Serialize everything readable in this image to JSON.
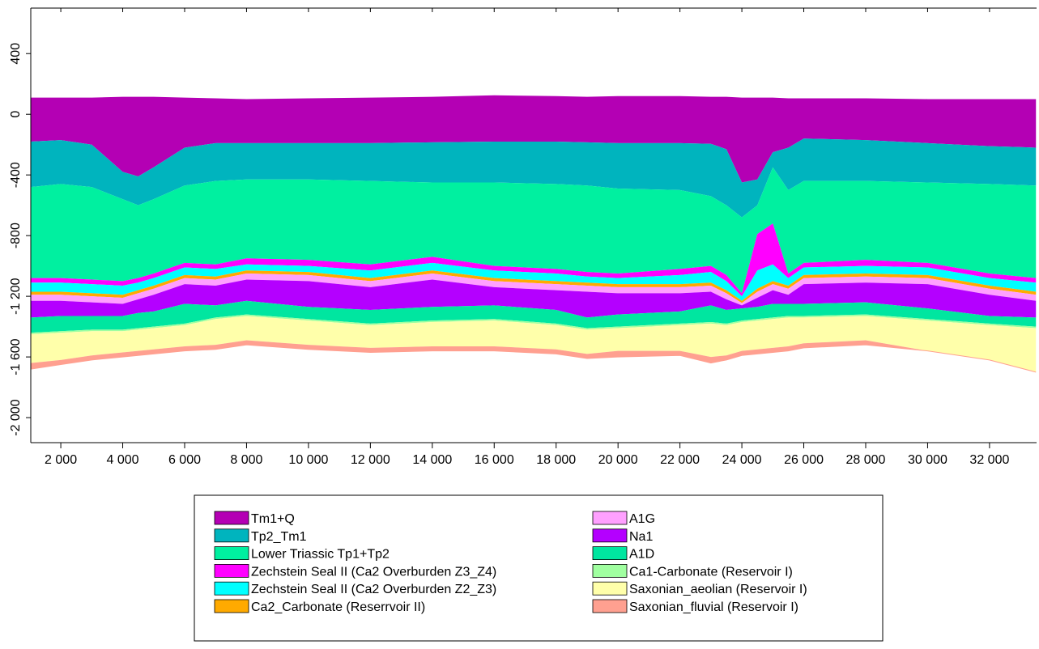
{
  "chart_data": {
    "type": "layered_area",
    "x": [
      1030,
      2000,
      3000,
      4000,
      4500,
      5000,
      6000,
      7000,
      8000,
      10000,
      12000,
      14000,
      16000,
      18000,
      19000,
      20000,
      22000,
      23000,
      23500,
      24000,
      24500,
      25000,
      25500,
      26000,
      28000,
      30000,
      32000,
      33500
    ],
    "series": [
      {
        "name": "Tm1+Q",
        "color": "#b400b4",
        "values": [
          110,
          110,
          110,
          115,
          115,
          115,
          110,
          105,
          100,
          105,
          110,
          115,
          125,
          120,
          115,
          120,
          120,
          115,
          115,
          110,
          110,
          110,
          105,
          105,
          105,
          100,
          100,
          100
        ]
      },
      {
        "name": "Tp2_Tm1",
        "color": "#00b4be",
        "values": [
          -180,
          -170,
          -200,
          -380,
          -410,
          -350,
          -220,
          -190,
          -190,
          -190,
          -190,
          -185,
          -180,
          -180,
          -185,
          -190,
          -190,
          -195,
          -230,
          -450,
          -430,
          -250,
          -220,
          -160,
          -170,
          -190,
          -210,
          -220
        ]
      },
      {
        "name": "Lower Triassic Tp1+Tp2",
        "color": "#00f0a0",
        "values": [
          -480,
          -460,
          -480,
          -560,
          -600,
          -560,
          -470,
          -440,
          -430,
          -430,
          -440,
          -450,
          -450,
          -460,
          -470,
          -490,
          -500,
          -540,
          -600,
          -680,
          -600,
          -350,
          -500,
          -440,
          -440,
          -450,
          -460,
          -470
        ]
      },
      {
        "name": "Zechstein Seal II (Ca2 Overburden Z3_Z4)",
        "color": "#ff00ff",
        "values": [
          -1080,
          -1080,
          -1090,
          -1100,
          -1080,
          -1050,
          -980,
          -990,
          -950,
          -960,
          -990,
          -940,
          -1000,
          -1020,
          -1040,
          -1050,
          -1020,
          -1000,
          -1060,
          -1180,
          -790,
          -720,
          -1050,
          -980,
          -960,
          -980,
          -1050,
          -1080
        ]
      },
      {
        "name": "Zechstein Seal II (Ca2 Overburden Z2_Z3)",
        "color": "#00ffff",
        "values": [
          -1110,
          -1110,
          -1120,
          -1130,
          -1110,
          -1080,
          -1010,
          -1020,
          -990,
          -1000,
          -1030,
          -980,
          -1030,
          -1050,
          -1070,
          -1080,
          -1060,
          -1040,
          -1100,
          -1200,
          -1030,
          -990,
          -1080,
          -1010,
          -1000,
          -1010,
          -1080,
          -1110
        ]
      },
      {
        "name": "Ca2_Carbonate (Reserrvoir II)",
        "color": "#ffaa00",
        "values": [
          -1170,
          -1170,
          -1180,
          -1190,
          -1160,
          -1130,
          -1060,
          -1070,
          -1030,
          -1040,
          -1080,
          -1030,
          -1080,
          -1100,
          -1110,
          -1120,
          -1120,
          -1110,
          -1160,
          -1230,
          -1150,
          -1100,
          -1130,
          -1060,
          -1050,
          -1060,
          -1130,
          -1170
        ]
      },
      {
        "name": "A1G",
        "color": "#ffa0ff",
        "values": [
          -1190,
          -1190,
          -1200,
          -1210,
          -1180,
          -1150,
          -1080,
          -1090,
          -1050,
          -1060,
          -1100,
          -1050,
          -1100,
          -1120,
          -1130,
          -1140,
          -1140,
          -1130,
          -1180,
          -1245,
          -1170,
          -1120,
          -1150,
          -1080,
          -1070,
          -1080,
          -1150,
          -1190
        ]
      },
      {
        "name": "Na1",
        "color": "#b400ff",
        "values": [
          -1230,
          -1230,
          -1240,
          -1250,
          -1220,
          -1190,
          -1120,
          -1130,
          -1090,
          -1100,
          -1140,
          -1090,
          -1140,
          -1160,
          -1170,
          -1180,
          -1180,
          -1170,
          -1220,
          -1260,
          -1210,
          -1160,
          -1190,
          -1120,
          -1110,
          -1120,
          -1190,
          -1230
        ]
      },
      {
        "name": "A1D",
        "color": "#00e6a0",
        "values": [
          -1340,
          -1330,
          -1330,
          -1330,
          -1310,
          -1300,
          -1250,
          -1260,
          -1230,
          -1270,
          -1290,
          -1270,
          -1260,
          -1290,
          -1340,
          -1320,
          -1300,
          -1260,
          -1290,
          -1280,
          -1270,
          -1250,
          -1250,
          -1250,
          -1240,
          -1280,
          -1330,
          -1340
        ]
      },
      {
        "name": "Ca1-Carbonate (Reservoir I)",
        "color": "#a0ffa0",
        "values": [
          -1440,
          -1430,
          -1420,
          -1420,
          -1410,
          -1400,
          -1380,
          -1340,
          -1320,
          -1350,
          -1380,
          -1360,
          -1350,
          -1380,
          -1410,
          -1400,
          -1380,
          -1370,
          -1380,
          -1360,
          -1350,
          -1340,
          -1330,
          -1330,
          -1320,
          -1350,
          -1380,
          -1400
        ]
      },
      {
        "name": "Saxonian_aeolian (Reservoir I)",
        "color": "#ffffaa",
        "values": [
          -1450,
          -1440,
          -1430,
          -1430,
          -1420,
          -1410,
          -1390,
          -1350,
          -1330,
          -1360,
          -1390,
          -1370,
          -1360,
          -1390,
          -1420,
          -1410,
          -1390,
          -1380,
          -1390,
          -1370,
          -1360,
          -1350,
          -1340,
          -1340,
          -1330,
          -1360,
          -1390,
          -1410
        ]
      },
      {
        "name": "Saxonian_fluvial (Reservoir I)",
        "color": "#ffa090",
        "values": [
          -1640,
          -1620,
          -1590,
          -1570,
          -1560,
          -1550,
          -1530,
          -1520,
          -1490,
          -1520,
          -1540,
          -1530,
          -1530,
          -1550,
          -1580,
          -1560,
          -1560,
          -1600,
          -1590,
          -1560,
          -1550,
          -1540,
          -1530,
          -1510,
          -1490,
          -1560,
          -1620,
          -1700
        ]
      }
    ],
    "base": [
      -1680,
      -1650,
      -1620,
      -1600,
      -1590,
      -1580,
      -1560,
      -1550,
      -1520,
      -1550,
      -1570,
      -1560,
      -1560,
      -1580,
      -1610,
      -1600,
      -1590,
      -1640,
      -1620,
      -1590,
      -1580,
      -1570,
      -1560,
      -1540,
      -1520,
      -1560,
      -1620,
      -1700
    ],
    "xlim": [
      1030,
      33520
    ],
    "ylim": [
      -2165,
      700
    ],
    "xticks": [
      {
        "value": 2000,
        "label": "2 000"
      },
      {
        "value": 4000,
        "label": "4 000"
      },
      {
        "value": 6000,
        "label": "6 000"
      },
      {
        "value": 8000,
        "label": "8 000"
      },
      {
        "value": 10000,
        "label": "10 000"
      },
      {
        "value": 12000,
        "label": "12 000"
      },
      {
        "value": 14000,
        "label": "14 000"
      },
      {
        "value": 16000,
        "label": "16 000"
      },
      {
        "value": 18000,
        "label": "18 000"
      },
      {
        "value": 20000,
        "label": "20 000"
      },
      {
        "value": 22000,
        "label": "22 000"
      },
      {
        "value": 24000,
        "label": "24 000"
      },
      {
        "value": 26000,
        "label": "26 000"
      },
      {
        "value": 28000,
        "label": "28 000"
      },
      {
        "value": 30000,
        "label": "30 000"
      },
      {
        "value": 32000,
        "label": "32 000"
      }
    ],
    "yticks": [
      400,
      0,
      -400,
      -800,
      {
        "value": -1200,
        "label": "-1 200"
      },
      {
        "value": -1600,
        "label": "-1 600"
      },
      {
        "value": -2000,
        "label": "-2 000"
      }
    ]
  }
}
